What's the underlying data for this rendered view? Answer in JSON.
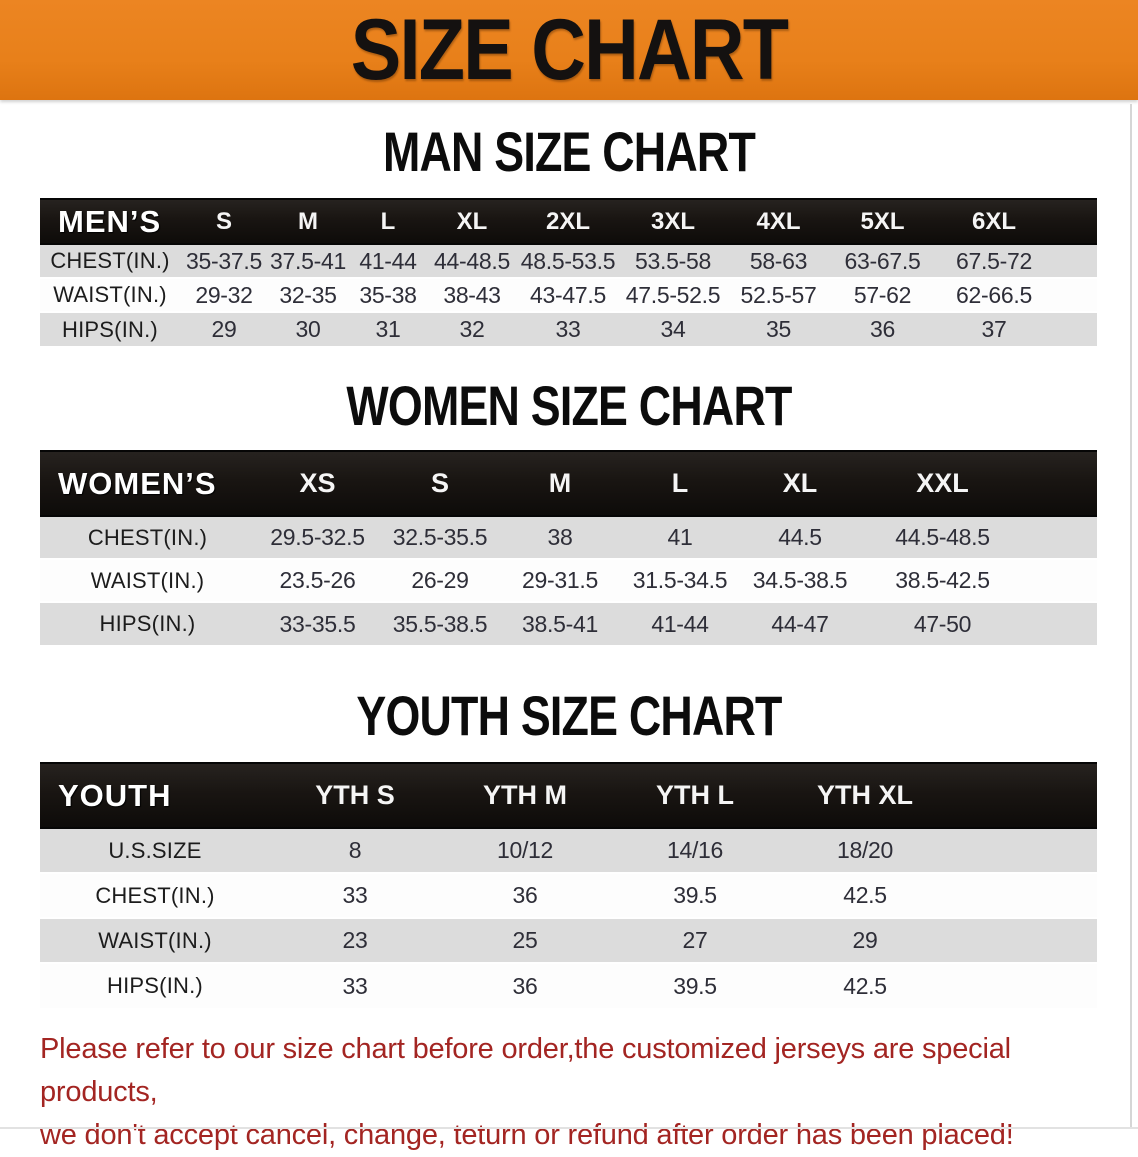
{
  "banner": {
    "title": "SIZE CHART"
  },
  "colors": {
    "banner_bg": "#e8801a",
    "header_bg": "#191512",
    "row_gray": "#dcdcdc",
    "footer_red": "#a32522",
    "value_color": "#2e2e38"
  },
  "sections": [
    {
      "id": "men",
      "heading": "MAN SIZE CHART",
      "header_label": "MEN’S",
      "columns": [
        "S",
        "M",
        "L",
        "XL",
        "2XL",
        "3XL",
        "4XL",
        "5XL",
        "6XL"
      ],
      "rows": [
        {
          "label": "CHEST(IN.)",
          "values": [
            "35-37.5",
            "37.5-41",
            "41-44",
            "44-48.5",
            "48.5-53.5",
            "53.5-58",
            "58-63",
            "63-67.5",
            "67.5-72"
          ]
        },
        {
          "label": "WAIST(IN.)",
          "values": [
            "29-32",
            "32-35",
            "35-38",
            "38-43",
            "43-47.5",
            "47.5-52.5",
            "52.5-57",
            "57-62",
            "62-66.5"
          ]
        },
        {
          "label": "HIPS(IN.)",
          "values": [
            "29",
            "30",
            "31",
            "32",
            "33",
            "34",
            "35",
            "36",
            "37"
          ]
        }
      ]
    },
    {
      "id": "women",
      "heading": "WOMEN SIZE CHART",
      "header_label": "WOMEN’S",
      "columns": [
        "XS",
        "S",
        "M",
        "L",
        "XL",
        "XXL"
      ],
      "rows": [
        {
          "label": "CHEST(IN.)",
          "values": [
            "29.5-32.5",
            "32.5-35.5",
            "38",
            "41",
            "44.5",
            "44.5-48.5"
          ]
        },
        {
          "label": "WAIST(IN.)",
          "values": [
            "23.5-26",
            "26-29",
            "29-31.5",
            "31.5-34.5",
            "34.5-38.5",
            "38.5-42.5"
          ]
        },
        {
          "label": "HIPS(IN.)",
          "values": [
            "33-35.5",
            "35.5-38.5",
            "38.5-41",
            "41-44",
            "44-47",
            "47-50"
          ]
        }
      ]
    },
    {
      "id": "youth",
      "heading": "YOUTH SIZE CHART",
      "header_label": "YOUTH",
      "columns": [
        "YTH S",
        "YTH M",
        "YTH L",
        "YTH XL"
      ],
      "rows": [
        {
          "label": "U.S.SIZE",
          "values": [
            "8",
            "10/12",
            "14/16",
            "18/20"
          ]
        },
        {
          "label": "CHEST(IN.)",
          "values": [
            "33",
            "36",
            "39.5",
            "42.5"
          ]
        },
        {
          "label": "WAIST(IN.)",
          "values": [
            "23",
            "25",
            "27",
            "29"
          ]
        },
        {
          "label": "HIPS(IN.)",
          "values": [
            "33",
            "36",
            "39.5",
            "42.5"
          ]
        }
      ]
    }
  ],
  "footer": {
    "line1": "Please refer to our size chart before order,the customized jerseys are special products,",
    "line2": "we don't accept cancel, change, teturn or refund after order has been placed!"
  }
}
